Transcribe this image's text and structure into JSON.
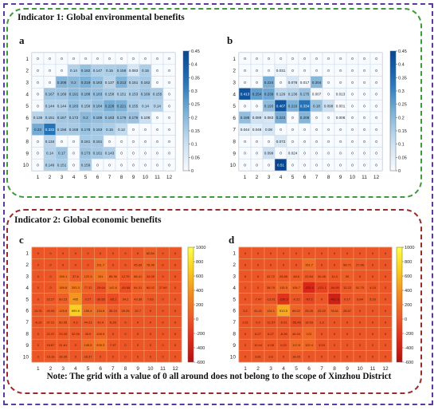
{
  "headings": {
    "env": "Indicator 1: Global environmental benefits",
    "eco": "Indicator 2: Global economic benefits",
    "note": "Note: The grid with a value of 0 all around does not belong to the scope of Xinzhou District"
  },
  "chart_data": [
    {
      "id": "a",
      "type": "heatmap",
      "panel_label": "a",
      "x_ticks": [
        "1",
        "2",
        "3",
        "4",
        "5",
        "6",
        "7",
        "8",
        "9",
        "10",
        "11",
        "12"
      ],
      "y_ticks": [
        "1",
        "2",
        "3",
        "4",
        "5",
        "6",
        "7",
        "8",
        "9",
        "10"
      ],
      "color_range": [
        0,
        0.45
      ],
      "colorbar_ticks": [
        0.45,
        0.4,
        0.35,
        0.3,
        0.25,
        0.2,
        0.15,
        0.1,
        0.05,
        0
      ],
      "values": [
        [
          0,
          0,
          0,
          0,
          0,
          0,
          0,
          0,
          0,
          0,
          0,
          0
        ],
        [
          0,
          0,
          0,
          0.14,
          0.182,
          0.147,
          0.15,
          0.158,
          0.083,
          0.15,
          0,
          0
        ],
        [
          0,
          0,
          0.208,
          0.2,
          0.219,
          0.183,
          0.137,
          0.213,
          0.151,
          0.162,
          0,
          0
        ],
        [
          0,
          0.167,
          0.169,
          0.191,
          0.188,
          0.183,
          0.158,
          0.151,
          0.153,
          0.169,
          0.155,
          0
        ],
        [
          0,
          0.144,
          0.144,
          0.183,
          0.158,
          0.184,
          0.228,
          0.221,
          0.155,
          0.14,
          0.14,
          0
        ],
        [
          0.135,
          0.151,
          0.167,
          0.172,
          0.2,
          0.188,
          0.183,
          0.179,
          0.176,
          0.108,
          0,
          0
        ],
        [
          0.23,
          0.332,
          0.158,
          0.158,
          0.178,
          0.163,
          0.15,
          0.12,
          0,
          0,
          0,
          0
        ],
        [
          0,
          0.134,
          0,
          0,
          0.161,
          0.161,
          0,
          0,
          0,
          0,
          0,
          0
        ],
        [
          0,
          0.14,
          0.17,
          0,
          0.173,
          0.161,
          0.143,
          0,
          0,
          0,
          0,
          0
        ],
        [
          0,
          0.146,
          0.151,
          0,
          0.159,
          0,
          0,
          0,
          0,
          0,
          0,
          0
        ]
      ]
    },
    {
      "id": "b",
      "type": "heatmap",
      "panel_label": "b",
      "x_ticks": [
        "1",
        "2",
        "3",
        "4",
        "5",
        "6",
        "7",
        "8",
        "9",
        "10",
        "11",
        "12"
      ],
      "y_ticks": [
        "1",
        "2",
        "3",
        "4",
        "5",
        "6",
        "7",
        "8",
        "9",
        "10"
      ],
      "color_range": [
        0,
        0.45
      ],
      "colorbar_ticks": [
        0.45,
        0.4,
        0.35,
        0.3,
        0.25,
        0.2,
        0.15,
        0.1,
        0.05,
        0
      ],
      "values": [
        [
          0,
          0,
          0,
          0,
          0,
          0,
          0,
          0,
          0,
          0,
          0,
          0
        ],
        [
          0,
          0,
          0,
          0.031,
          0,
          0,
          0,
          0,
          0,
          0,
          0,
          0
        ],
        [
          0,
          0,
          0.224,
          0,
          0.078,
          0.017,
          0.204,
          0,
          0,
          0,
          0,
          0
        ],
        [
          0.413,
          0.254,
          0.239,
          0.126,
          0.136,
          0.175,
          0.007,
          0,
          0.013,
          0,
          0,
          0
        ],
        [
          0,
          0,
          0.193,
          0.407,
          0.216,
          0.334,
          0.18,
          0.098,
          0.001,
          0,
          0,
          0
        ],
        [
          0.188,
          0.089,
          0.083,
          0.222,
          0,
          0.208,
          0,
          0,
          0.008,
          0,
          0,
          0
        ],
        [
          0.044,
          0.048,
          0.08,
          0,
          0,
          0,
          0,
          0,
          0,
          0,
          0,
          0
        ],
        [
          0,
          0,
          0,
          0.072,
          0,
          0,
          0,
          0,
          0,
          0,
          0,
          0
        ],
        [
          0,
          0,
          0.099,
          0,
          0.024,
          0,
          0,
          0,
          0,
          0,
          0,
          0
        ],
        [
          0,
          0,
          0,
          0.51,
          0,
          0,
          0,
          0,
          0,
          0,
          0,
          0
        ]
      ]
    },
    {
      "id": "c",
      "type": "heatmap",
      "panel_label": "c",
      "x_ticks": [
        "1",
        "2",
        "3",
        "4",
        "5",
        "6",
        "7",
        "8",
        "9",
        "10",
        "11",
        "12"
      ],
      "y_ticks": [
        "1",
        "2",
        "3",
        "4",
        "5",
        "6",
        "7",
        "8",
        "9",
        "10"
      ],
      "color_range": [
        -600,
        1000
      ],
      "colorbar_ticks": [
        1000,
        800,
        600,
        400,
        200,
        0,
        -200,
        -400,
        -600
      ],
      "values": [
        [
          0,
          0,
          0,
          0,
          0,
          0,
          0,
          0,
          0,
          62.84,
          0,
          0
        ],
        [
          0,
          0,
          0,
          0,
          0,
          151.7,
          0,
          0,
          45.39,
          78.96,
          0,
          0
        ],
        [
          0,
          0,
          159.1,
          37.6,
          122.3,
          191,
          85.36,
          12.75,
          86.41,
          24.05,
          0,
          0
        ],
        [
          0,
          0,
          189.8,
          253.3,
          77.32,
          -29.64,
          142.6,
          -49.68,
          64.31,
          60.02,
          27.69,
          0
        ],
        [
          0,
          22.27,
          60.23,
          405,
          0.27,
          -39.85,
          -65.1,
          34.2,
          43.39,
          7.63,
          0,
          0
        ],
        [
          13.31,
          40.06,
          125.6,
          699.8,
          155.4,
          134.8,
          35.24,
          59.28,
          32.7,
          0,
          0,
          0
        ],
        [
          -8.19,
          37.21,
          60.95,
          9.2,
          44.23,
          42.4,
          6.28,
          0,
          0,
          0,
          0,
          0
        ],
        [
          0,
          21.37,
          23.29,
          32.09,
          45.5,
          105.9,
          0,
          0,
          0,
          0,
          0,
          0
        ],
        [
          0,
          15.87,
          31.61,
          0,
          145.5,
          205.3,
          7.37,
          0,
          0,
          0,
          0,
          0
        ],
        [
          0,
          15.16,
          28.26,
          0,
          28.37,
          0,
          0,
          0,
          0,
          0,
          0,
          0
        ]
      ]
    },
    {
      "id": "d",
      "type": "heatmap",
      "panel_label": "d",
      "x_ticks": [
        "1",
        "2",
        "3",
        "4",
        "5",
        "6",
        "7",
        "8",
        "9",
        "10",
        "11",
        "12"
      ],
      "y_ticks": [
        "1",
        "2",
        "3",
        "4",
        "5",
        "6",
        "7",
        "8",
        "9",
        "10"
      ],
      "color_range": [
        -600,
        1000
      ],
      "colorbar_ticks": [
        1000,
        800,
        600,
        400,
        200,
        0,
        -200,
        -400,
        -600
      ],
      "values": [
        [
          0,
          0,
          0,
          0,
          0,
          0,
          0,
          0,
          0,
          0,
          0,
          0
        ],
        [
          0,
          0,
          0,
          0,
          0,
          151.7,
          0,
          0,
          58.71,
          27.46,
          0,
          0
        ],
        [
          0,
          0,
          42.72,
          28.86,
          48.6,
          22.84,
          30.46,
          11.4,
          50,
          0,
          0,
          0
        ],
        [
          0,
          0,
          38.79,
          115.5,
          105.7,
          -325.4,
          -121.1,
          -94.99,
          12.22,
          52.75,
          4.24,
          0
        ],
        [
          0,
          -7.47,
          -13.91,
          -236.3,
          -0.22,
          -97.2,
          0,
          -401.8,
          0.17,
          6.84,
          5.16,
          0
        ],
        [
          3.2,
          41.41,
          124.1,
          513.5,
          89.02,
          25.26,
          22.22,
          78.61,
          28.67,
          0,
          0,
          0
        ],
        [
          1.01,
          0.9,
          -11.57,
          -0.01,
          -56.48,
          18.53,
          1.3,
          0,
          0,
          0,
          0,
          0
        ],
        [
          0,
          6.27,
          6.27,
          -8.26,
          46.34,
          122,
          0,
          0,
          0,
          0,
          0,
          0
        ],
        [
          0,
          10.44,
          4.28,
          0.22,
          117.8,
          122.4,
          3.24,
          0,
          0,
          0,
          0,
          0
        ],
        [
          0,
          3.81,
          3.6,
          0,
          18.25,
          0,
          0,
          0,
          0,
          0,
          0,
          0
        ]
      ]
    }
  ]
}
